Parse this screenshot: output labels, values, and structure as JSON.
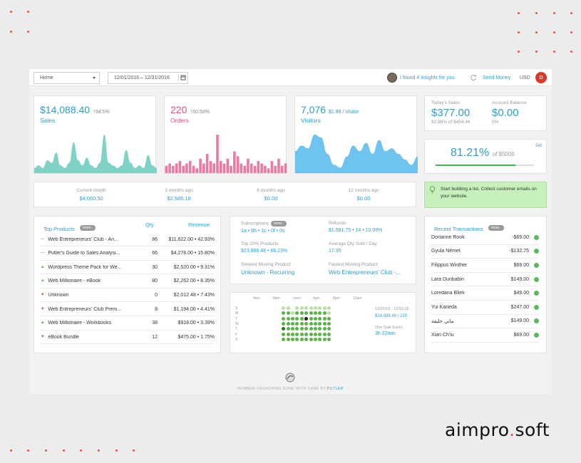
{
  "topbar": {
    "view_select": "Home",
    "date_range": "12/01/2016 – 12/31/2016",
    "insights": "I found 4 insights for you",
    "send_money": "Send Money",
    "currency": "USD",
    "user_initial": "D"
  },
  "metrics": {
    "sales": {
      "value": "$14,088.40",
      "change": "94.5%",
      "label": "Sales",
      "color": "#2b9fcf",
      "fill": "#7fd3c6",
      "series": [
        2,
        3,
        2,
        5,
        4,
        8,
        3,
        2,
        4,
        12,
        5,
        3,
        6,
        3,
        2,
        4,
        15,
        4,
        3,
        2,
        3,
        9,
        4,
        2,
        3,
        2,
        7,
        3,
        2
      ]
    },
    "orders": {
      "value": "220",
      "change": "60.58%",
      "label": "Orders",
      "color": "#e05183",
      "fill": "#ee78a2",
      "series": [
        3,
        4,
        3,
        4,
        5,
        3,
        4,
        5,
        3,
        2,
        6,
        4,
        8,
        5,
        4,
        16,
        5,
        4,
        6,
        3,
        9,
        7,
        4,
        3,
        6,
        4,
        3,
        5,
        4,
        3,
        2,
        5,
        3,
        6,
        3,
        4
      ]
    },
    "visitors": {
      "value": "7,076",
      "sub": "$1.99 / Visitor",
      "label": "Visitors",
      "color": "#2b9fcf",
      "fill": "#6ec4ef",
      "series": [
        8,
        10,
        9,
        14,
        13,
        7,
        3,
        2,
        6,
        10,
        8,
        11,
        7,
        12,
        8,
        9,
        7,
        5,
        3,
        6
      ]
    }
  },
  "today": {
    "label": "Today's Sales",
    "value": "$377.00",
    "sub": "82.96% of $454.46"
  },
  "balance": {
    "label": "Account Balance",
    "value": "$0.00",
    "sub": "0%"
  },
  "goal": {
    "pct": "81.21%",
    "of": "of $5000",
    "set": "Set",
    "progress": 0.8121
  },
  "history": [
    {
      "label": "Current month",
      "value": "$4,060.50"
    },
    {
      "label": "3 months ago",
      "value": "$2,585.18"
    },
    {
      "label": "6 months ago",
      "value": "$0.00"
    },
    {
      "label": "12 months ago",
      "value": "$0.00"
    }
  ],
  "tip": "Start building a list. Collect customer emails on your website.",
  "products": {
    "title": "Top Products",
    "more": "more..",
    "qty_header": "Qty.",
    "rev_header": "Revenue",
    "rows": [
      {
        "icon": "dash",
        "name": "Web Entrepreneurs' Club - An...",
        "qty": "86",
        "rev": "$11,622.00 • 42.93%"
      },
      {
        "icon": "dash",
        "name": "Putler's Guide to Sales Analysi...",
        "qty": "66",
        "rev": "$4,278.00 • 15.80%"
      },
      {
        "icon": "up",
        "name": "Wordpress Theme Pack for We...",
        "qty": "30",
        "rev": "$2,520.00 • 9.31%"
      },
      {
        "icon": "up",
        "name": "Web Millionaire - eBook",
        "qty": "80",
        "rev": "$2,262.00 • 8.35%"
      },
      {
        "icon": "down",
        "name": "Unknown",
        "qty": "0",
        "rev": "$2,012.48 • 7.43%"
      },
      {
        "icon": "down",
        "name": "Web Entrepreneurs' Club Prem...",
        "qty": "8",
        "rev": "$1,194.00 • 4.41%"
      },
      {
        "icon": "up",
        "name": "Web Millionaire - Workbooks",
        "qty": "38",
        "rev": "$918.00 • 3.39%"
      },
      {
        "icon": "down",
        "name": "eBook Bundle",
        "qty": "12",
        "rev": "$475.00 • 1.75%"
      }
    ]
  },
  "stats": {
    "subs_label": "Subscriptions",
    "subs_more": "more..",
    "subs_value": "1a • 8h • 1c • 0f • 0s",
    "refunds_label": "Refunds",
    "refunds_value": "$1,581.75 • 14 • 10.09%",
    "top20_label": "Top 20% Products",
    "top20_value": "$23,888.48 • 88.23%",
    "avgqty_label": "Average Qty Sold / Day",
    "avgqty_value": "17.35",
    "slow_label": "Slowest Moving Product",
    "slow_value": "Unknown - Recurring",
    "fast_label": "Fastest Moving Product",
    "fast_value": "Web Entrepreneurs' Club -..."
  },
  "heatmap": {
    "hours": [
      "4am",
      "8am",
      "noon",
      "4pm",
      "8pm",
      "12am"
    ],
    "days": [
      "S",
      "M",
      "T",
      "W",
      "T",
      "F",
      "S"
    ],
    "range": "12/01/16 - 12/31/16",
    "total": "$14,088.40 / 220",
    "one_sale": "One Sale Every",
    "interval": "3h 22min"
  },
  "transactions": {
    "title": "Recent Transactions",
    "more": "more..",
    "rows": [
      {
        "name": "Dorianne Rook",
        "amount": "-$69.00"
      },
      {
        "name": "Gyula Német",
        "amount": "-$132.75"
      },
      {
        "name": "Filippus Winther",
        "amount": "$69.00"
      },
      {
        "name": "Lara Dunbabin",
        "amount": "$149.00"
      },
      {
        "name": "Loredana Bliek",
        "amount": "$49.00"
      },
      {
        "name": "Yui Kaneda",
        "amount": "$247.00"
      },
      {
        "name": "ماني خليفة",
        "amount": "$149.00"
      },
      {
        "name": "Xian Ch'iu",
        "amount": "$69.00"
      }
    ]
  },
  "footer": {
    "text": "NUMBER CRUNCHING DONE WITH CARE BY",
    "brand": "PUTLER"
  },
  "brand_logo": {
    "left": "aimpro",
    "dot": ".",
    "right": "soft"
  }
}
